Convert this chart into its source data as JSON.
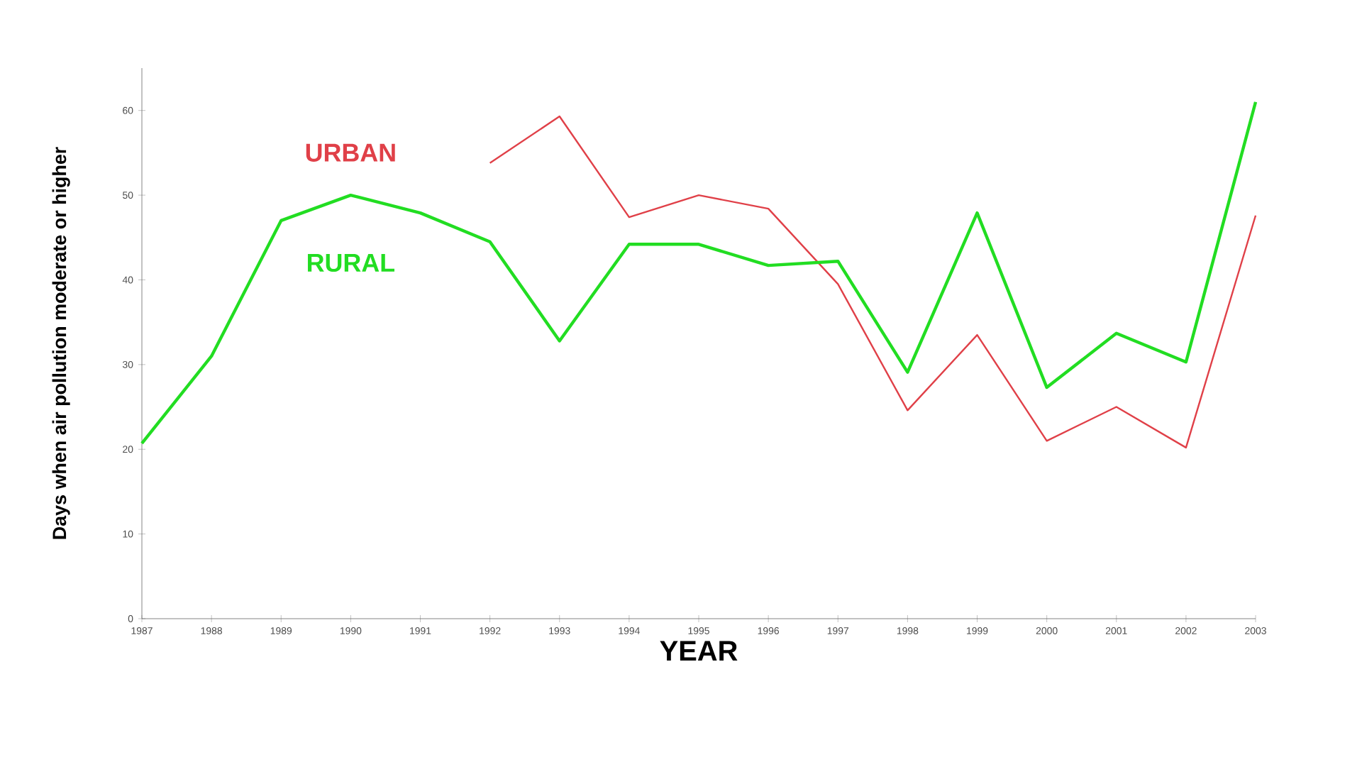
{
  "chart_data": {
    "type": "line",
    "xlabel": "YEAR",
    "ylabel": "Days when air pollution moderate or higher",
    "x": [
      1987,
      1988,
      1989,
      1990,
      1991,
      1992,
      1993,
      1994,
      1995,
      1996,
      1997,
      1998,
      1999,
      2000,
      2001,
      2002,
      2003
    ],
    "series": [
      {
        "name": "URBAN",
        "color": "#e04048",
        "values": [
          null,
          null,
          null,
          null,
          null,
          53.8,
          59.3,
          47.4,
          50,
          48.4,
          39.5,
          24.6,
          33.5,
          21,
          25,
          20.2,
          47.6
        ]
      },
      {
        "name": "RURAL",
        "color": "#22dd22",
        "values": [
          20.7,
          31,
          47,
          50,
          47.9,
          44.5,
          32.8,
          44.2,
          44.2,
          41.7,
          42.2,
          29.1,
          47.9,
          27.3,
          33.7,
          30.3,
          61
        ]
      }
    ],
    "xlim": [
      1987,
      2003
    ],
    "ylim": [
      0,
      65
    ],
    "xticks": [
      1987,
      1988,
      1989,
      1990,
      1991,
      1992,
      1993,
      1994,
      1995,
      1996,
      1997,
      1998,
      1999,
      2000,
      2001,
      2002,
      2003
    ],
    "yticks": [
      0,
      10,
      20,
      30,
      40,
      50,
      60
    ],
    "grid": false,
    "legend": false
  }
}
